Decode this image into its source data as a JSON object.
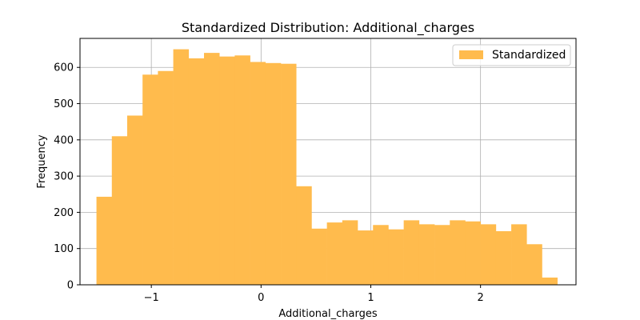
{
  "chart_data": {
    "type": "bar",
    "title": "Standardized Distribution: Additional_charges",
    "xlabel": "Additional_charges",
    "ylabel": "Frequency",
    "xlim": [
      -1.65,
      2.87
    ],
    "ylim": [
      0,
      680
    ],
    "grid": true,
    "legend": {
      "placement": "top-right",
      "entries": [
        {
          "label": "Standardized",
          "color": "#ffbb4d"
        }
      ]
    },
    "x_ticks": [
      {
        "value": -1,
        "label": "−1"
      },
      {
        "value": 0,
        "label": "0"
      },
      {
        "value": 1,
        "label": "1"
      },
      {
        "value": 2,
        "label": "2"
      }
    ],
    "y_ticks": [
      {
        "value": 0,
        "label": "0"
      },
      {
        "value": 100,
        "label": "100"
      },
      {
        "value": 200,
        "label": "200"
      },
      {
        "value": 300,
        "label": "300"
      },
      {
        "value": 400,
        "label": "400"
      },
      {
        "value": 500,
        "label": "500"
      },
      {
        "value": 600,
        "label": "600"
      }
    ],
    "series": [
      {
        "name": "Standardized",
        "color": "#ffbb4d",
        "bin_edges": [
          -1.5,
          -1.36,
          -1.22,
          -1.08,
          -0.94,
          -0.8,
          -0.66,
          -0.52,
          -0.38,
          -0.24,
          -0.1,
          0.04,
          0.18,
          0.32,
          0.46,
          0.6,
          0.74,
          0.88,
          1.02,
          1.16,
          1.3,
          1.44,
          1.58,
          1.72,
          1.86,
          2.0,
          2.14,
          2.28,
          2.42,
          2.56,
          2.7
        ],
        "values": [
          243,
          410,
          467,
          580,
          590,
          650,
          625,
          640,
          630,
          633,
          615,
          612,
          610,
          272,
          155,
          172,
          178,
          150,
          165,
          153,
          178,
          167,
          165,
          178,
          175,
          167,
          148,
          167,
          112,
          20
        ]
      }
    ]
  }
}
